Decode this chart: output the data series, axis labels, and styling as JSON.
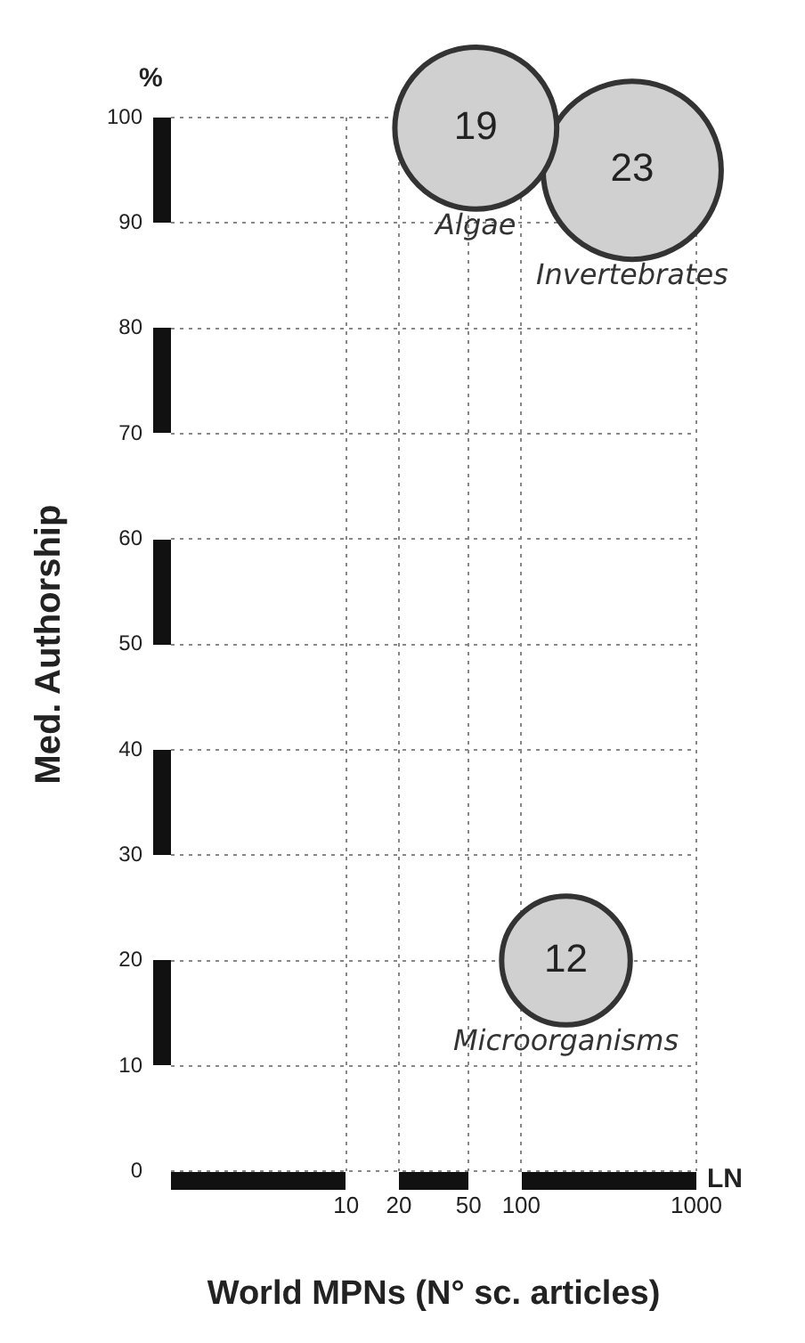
{
  "chart_data": {
    "type": "bubble",
    "xlabel": "World MPNs (N° sc. articles)",
    "ylabel": "Med. Authorship",
    "annotations": [
      "%",
      "LN"
    ],
    "series": [
      {
        "name": "Algae",
        "color": "#d0d0d0",
        "x": [
          55
        ],
        "values": [
          99
        ],
        "sizes": [
          19
        ],
        "value_labels": [
          "19"
        ]
      },
      {
        "name": "Invertebrates",
        "color": "#d0d0d0",
        "x": [
          430
        ],
        "values": [
          95
        ],
        "sizes": [
          23
        ],
        "value_labels": [
          "23"
        ]
      },
      {
        "name": "Microorganisms",
        "color": "#d0d0d0",
        "x": [
          180
        ],
        "values": [
          20
        ],
        "sizes": [
          12
        ],
        "value_labels": [
          "12"
        ]
      }
    ],
    "log": "x",
    "xlim": [
      1,
      1000
    ],
    "xticks": [
      10,
      20,
      50,
      100,
      1000
    ],
    "ylim": [
      0,
      100
    ],
    "yticks": [
      0,
      10,
      20,
      30,
      40,
      50,
      60,
      70,
      80,
      90,
      100
    ],
    "grid": true,
    "legend": false
  }
}
